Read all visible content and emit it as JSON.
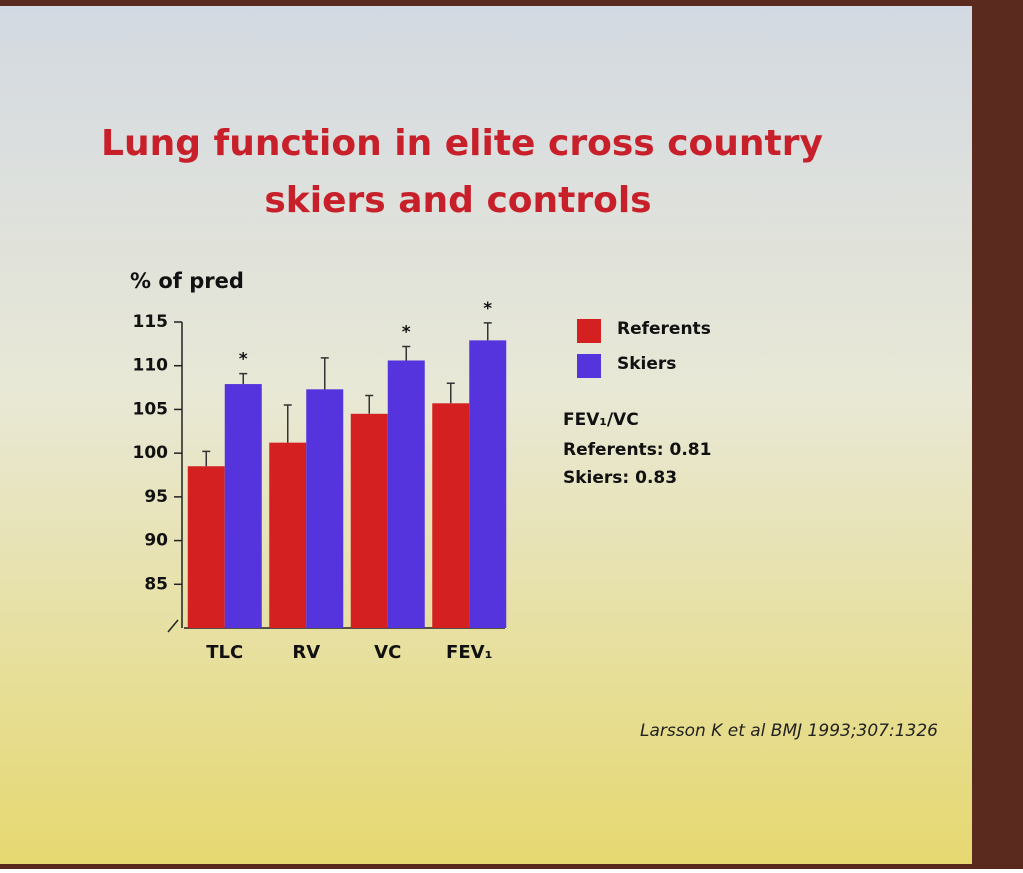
{
  "chart_data": {
    "type": "bar",
    "title": [
      "Lung function in elite cross country",
      "skiers and controls"
    ],
    "y_label": "% of pred",
    "categories": [
      "TLC",
      "RV",
      "VC",
      "FEV₁"
    ],
    "series": [
      {
        "name": "Referents",
        "color": "#d42020",
        "values": [
          98.5,
          101.2,
          104.5,
          105.7
        ],
        "errors": [
          1.7,
          4.3,
          2.1,
          2.3
        ]
      },
      {
        "name": "Skiers",
        "color": "#5533dd",
        "values": [
          107.9,
          107.3,
          110.6,
          112.9
        ],
        "errors": [
          1.2,
          3.6,
          1.6,
          2.0
        ],
        "significance_marks": [
          "*",
          null,
          "*",
          "*"
        ]
      }
    ],
    "ylim": [
      80,
      115
    ],
    "yticks": [
      85,
      90,
      95,
      100,
      105,
      110,
      115
    ],
    "notes": [
      "FEV₁/VC",
      "Referents: 0.81",
      "Skiers: 0.83"
    ],
    "source": "Larsson K et al BMJ 1993;307:1326"
  }
}
